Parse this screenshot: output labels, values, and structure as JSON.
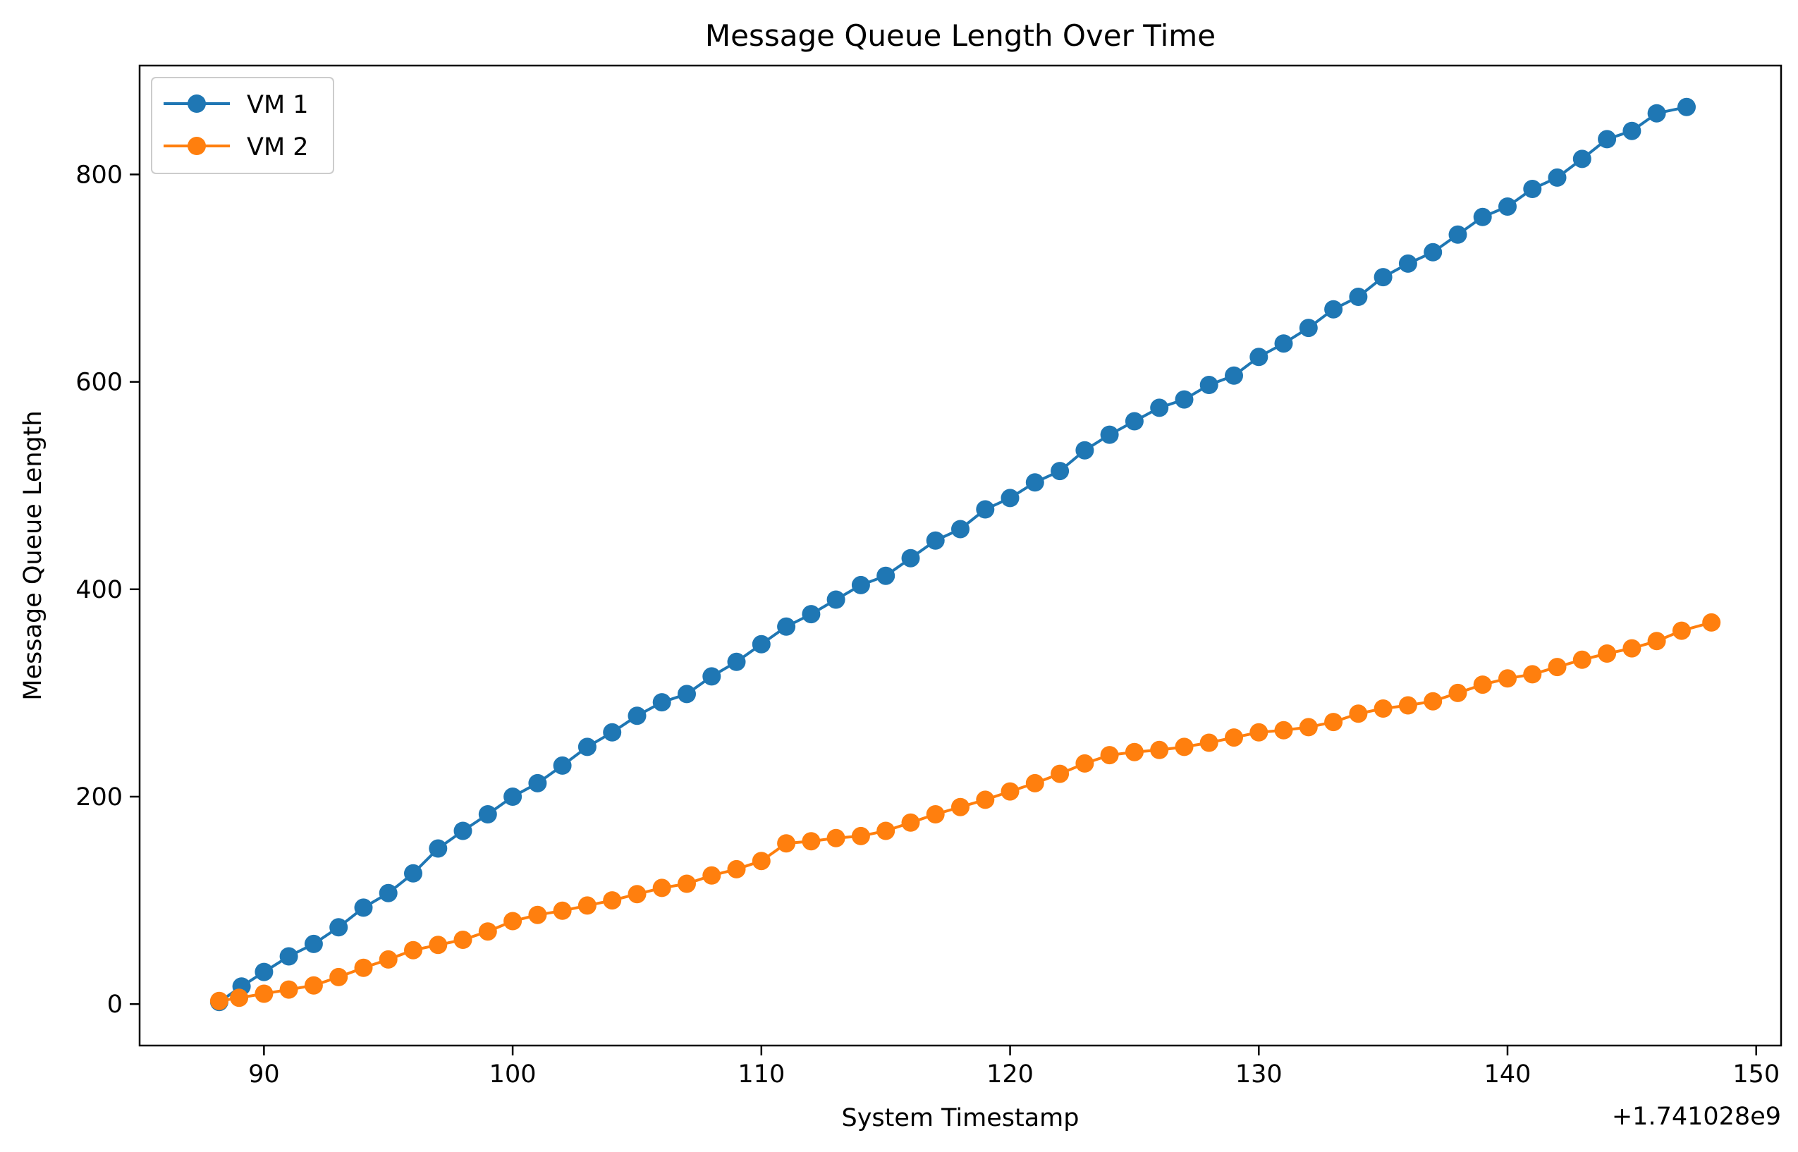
{
  "chart_data": {
    "type": "line",
    "title": "Message Queue Length Over Time",
    "xlabel": "System Timestamp",
    "ylabel": "Message Queue Length",
    "x_offset_label": "+1.741028e9",
    "xlim": [
      85,
      151
    ],
    "ylim": [
      -40,
      905
    ],
    "xticks": [
      90,
      100,
      110,
      120,
      130,
      140,
      150
    ],
    "yticks": [
      0,
      200,
      400,
      600,
      800
    ],
    "grid": false,
    "legend_position": "top-left",
    "series": [
      {
        "name": "VM 1",
        "color": "#1f77b4",
        "marker": "circle",
        "x": [
          88.2,
          89.1,
          90.0,
          91.0,
          92.0,
          93.0,
          94.0,
          95.0,
          96.0,
          97.0,
          98.0,
          99.0,
          100.0,
          101.0,
          102.0,
          103.0,
          104.0,
          105.0,
          106.0,
          107.0,
          108.0,
          109.0,
          110.0,
          111.0,
          112.0,
          113.0,
          114.0,
          115.0,
          116.0,
          117.0,
          118.0,
          119.0,
          120.0,
          121.0,
          122.0,
          123.0,
          124.0,
          125.0,
          126.0,
          127.0,
          128.0,
          129.0,
          130.0,
          131.0,
          132.0,
          133.0,
          134.0,
          135.0,
          136.0,
          137.0,
          138.0,
          139.0,
          140.0,
          141.0,
          142.0,
          143.0,
          144.0,
          145.0,
          146.0,
          147.2
        ],
        "y": [
          2,
          17,
          31,
          46,
          58,
          74,
          93,
          107,
          126,
          150,
          167,
          183,
          200,
          213,
          230,
          248,
          262,
          278,
          291,
          299,
          316,
          330,
          347,
          364,
          376,
          390,
          404,
          413,
          430,
          447,
          458,
          477,
          488,
          503,
          514,
          534,
          549,
          562,
          575,
          583,
          597,
          606,
          624,
          637,
          652,
          670,
          682,
          701,
          714,
          725,
          742,
          759,
          769,
          786,
          797,
          815,
          834,
          842,
          859,
          865
        ]
      },
      {
        "name": "VM 2",
        "color": "#ff7f0e",
        "marker": "circle",
        "x": [
          88.2,
          89.0,
          90.0,
          91.0,
          92.0,
          93.0,
          94.0,
          95.0,
          96.0,
          97.0,
          98.0,
          99.0,
          100.0,
          101.0,
          102.0,
          103.0,
          104.0,
          105.0,
          106.0,
          107.0,
          108.0,
          109.0,
          110.0,
          111.0,
          112.0,
          113.0,
          114.0,
          115.0,
          116.0,
          117.0,
          118.0,
          119.0,
          120.0,
          121.0,
          122.0,
          123.0,
          124.0,
          125.0,
          126.0,
          127.0,
          128.0,
          129.0,
          130.0,
          131.0,
          132.0,
          133.0,
          134.0,
          135.0,
          136.0,
          137.0,
          138.0,
          139.0,
          140.0,
          141.0,
          142.0,
          143.0,
          144.0,
          145.0,
          146.0,
          147.0,
          148.2
        ],
        "y": [
          3,
          6,
          10,
          14,
          18,
          26,
          35,
          43,
          52,
          57,
          62,
          70,
          80,
          86,
          90,
          95,
          100,
          106,
          112,
          116,
          124,
          130,
          138,
          155,
          157,
          160,
          162,
          167,
          175,
          183,
          190,
          197,
          205,
          213,
          222,
          232,
          240,
          243,
          245,
          248,
          252,
          257,
          262,
          264,
          267,
          272,
          280,
          285,
          288,
          292,
          300,
          308,
          314,
          318,
          325,
          332,
          338,
          343,
          350,
          360,
          368
        ]
      }
    ]
  }
}
